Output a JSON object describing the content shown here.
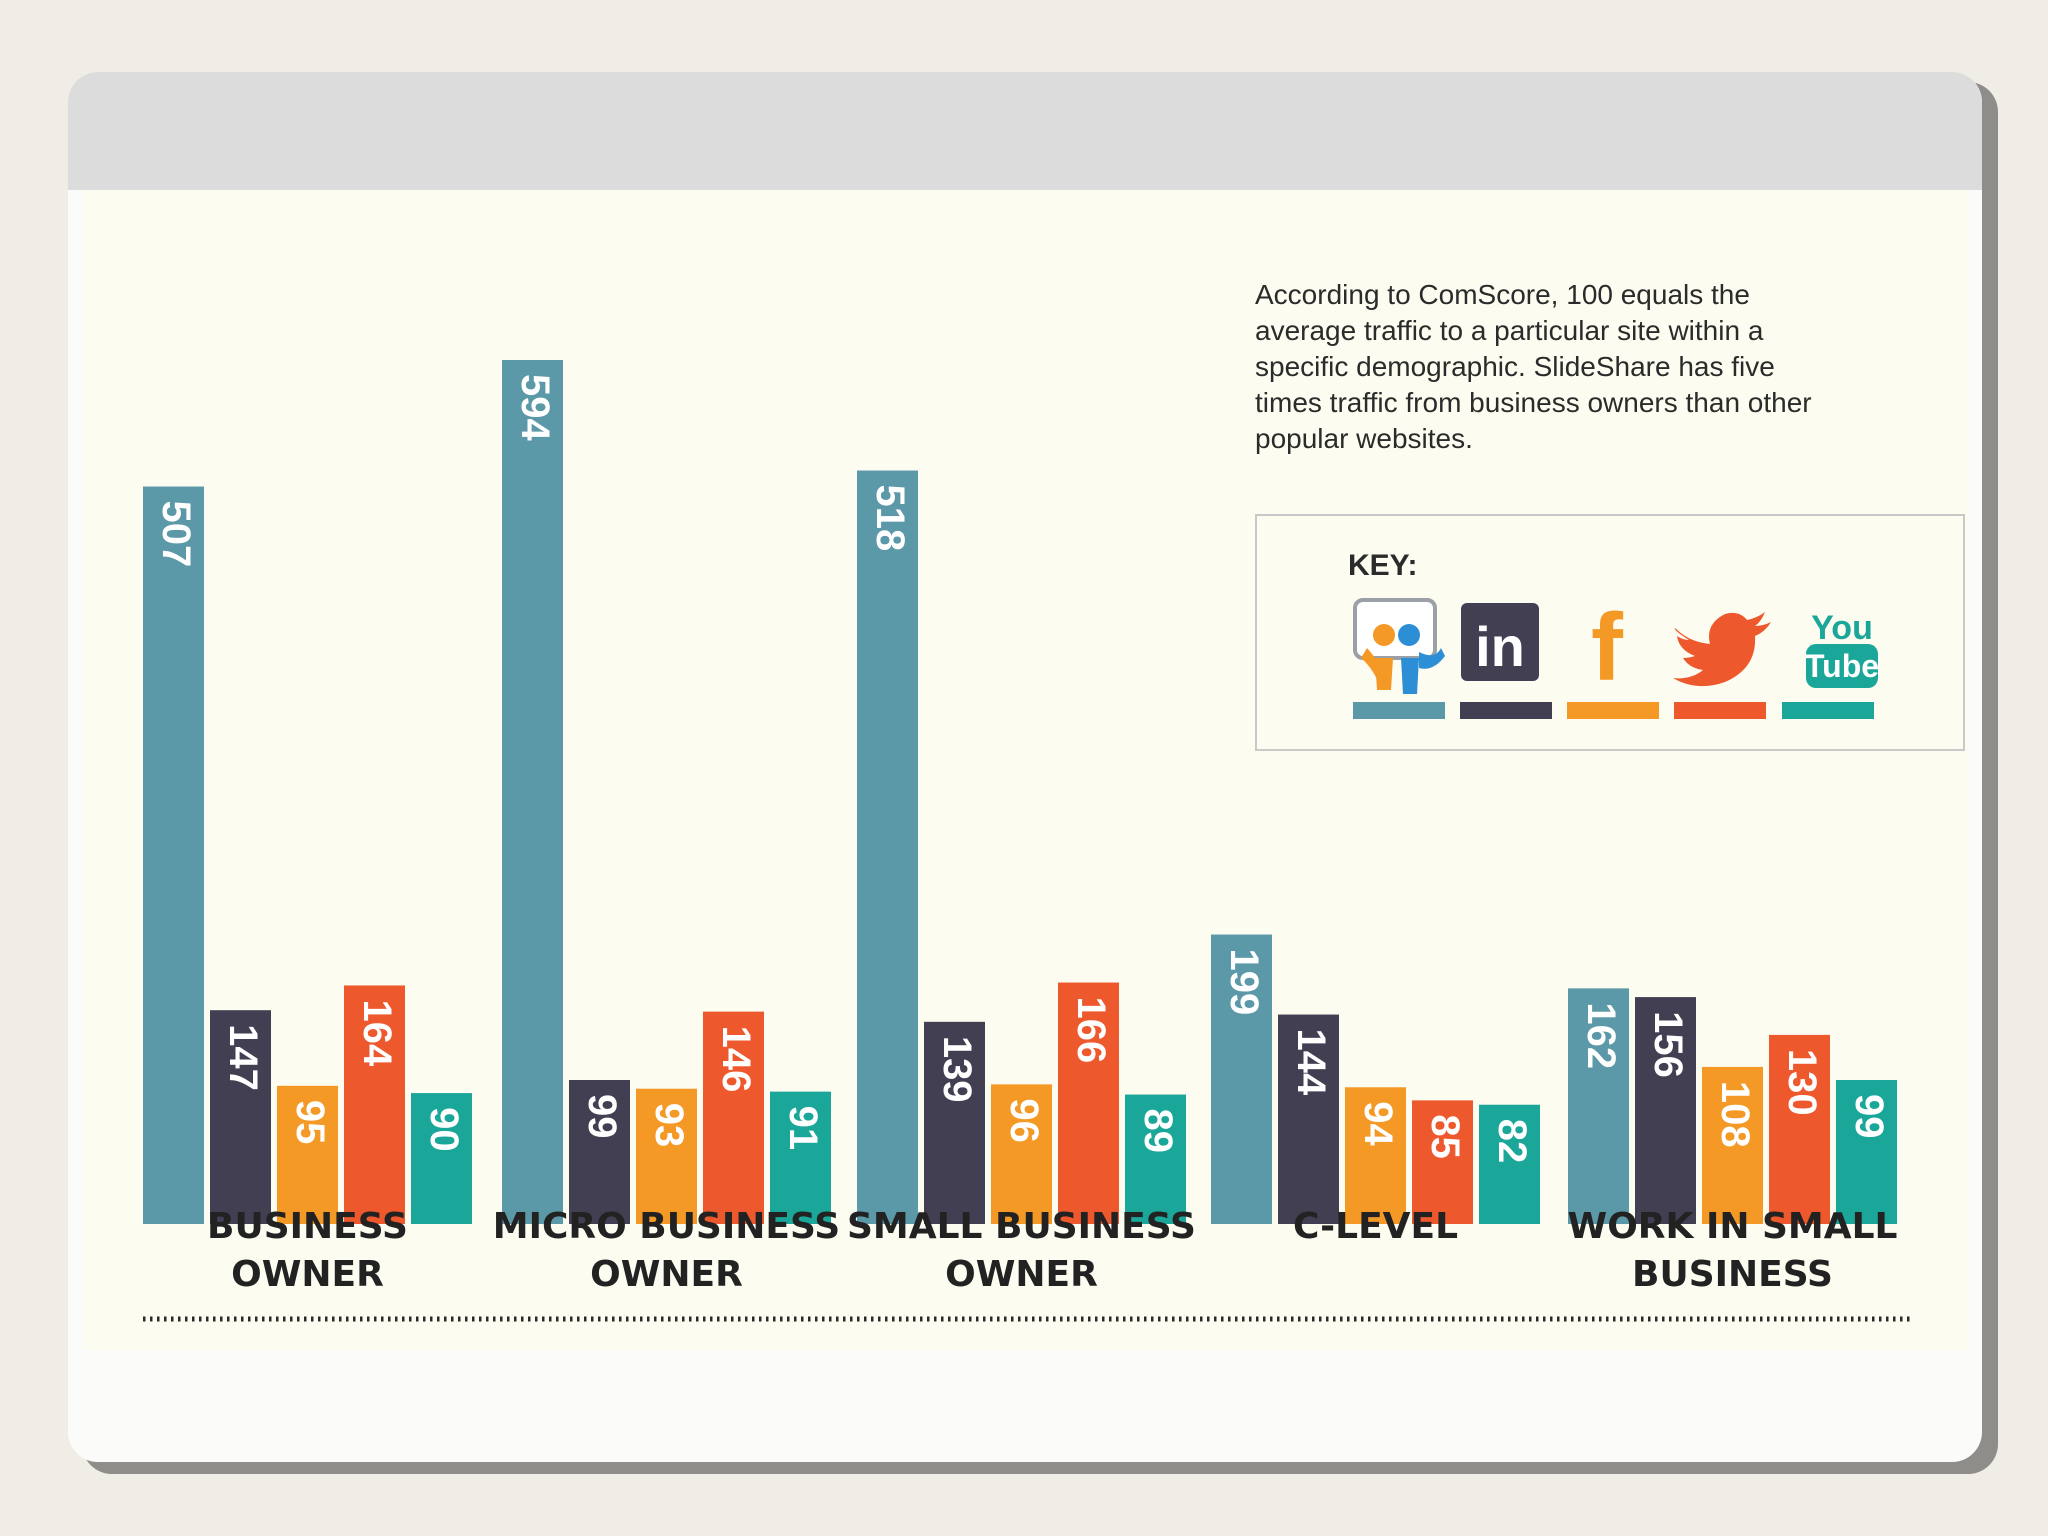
{
  "note": "According to ComScore, 100 equals the average traffic to a particular site within a specific demographic. SlideShare has five times traffic from business owners than other popular websites.",
  "note_lines": [
    "According to ComScore, 100 equals the",
    "average traffic to a particular site within a",
    "specific demographic. SlideShare has five",
    "times traffic from business owners than other",
    "popular websites."
  ],
  "key": {
    "title": "KEY:",
    "items": [
      {
        "icon": "slideshare-icon",
        "color": "#5b98a8"
      },
      {
        "icon": "linkedin-icon",
        "color": "#423f53",
        "glyph": "in"
      },
      {
        "icon": "facebook-icon",
        "color": "#f49826",
        "glyph": "f"
      },
      {
        "icon": "twitter-icon",
        "color": "#ee582d"
      },
      {
        "icon": "youtube-icon",
        "color": "#1aa79a",
        "glyph_top": "You",
        "glyph_bottom": "Tube"
      }
    ]
  },
  "chart_data": {
    "type": "bar",
    "categories": [
      [
        "BUSINESS",
        "OWNER"
      ],
      [
        "MICRO BUSINESS",
        "OWNER"
      ],
      [
        "SMALL BUSINESS",
        "OWNER"
      ],
      [
        "C-LEVEL"
      ],
      [
        "WORK IN SMALL",
        "BUSINESS"
      ]
    ],
    "series": [
      {
        "key": "slideshare",
        "color": "#5b98a8",
        "values": [
          507,
          594,
          518,
          199,
          162
        ]
      },
      {
        "key": "linkedin",
        "color": "#423f53",
        "values": [
          147,
          99,
          139,
          144,
          156
        ]
      },
      {
        "key": "facebook",
        "color": "#f49826",
        "values": [
          95,
          93,
          96,
          94,
          108
        ]
      },
      {
        "key": "twitter",
        "color": "#ee582d",
        "values": [
          164,
          146,
          166,
          85,
          130
        ]
      },
      {
        "key": "youtube",
        "color": "#1aa79a",
        "values": [
          90,
          91,
          89,
          82,
          99
        ]
      }
    ],
    "ylim": [
      0,
      594
    ],
    "grid": false,
    "legend": "top-right"
  }
}
